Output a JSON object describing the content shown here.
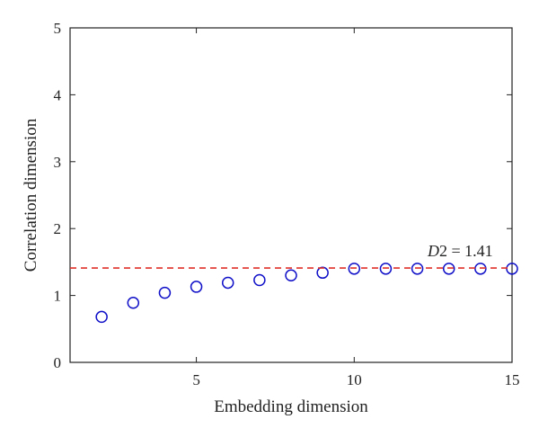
{
  "chart_data": {
    "type": "scatter",
    "xlabel": "Embedding dimension",
    "ylabel": "Correlation dimension",
    "xlim": [
      1,
      15
    ],
    "ylim": [
      0,
      5
    ],
    "xticks": [
      5,
      10,
      15
    ],
    "yticks": [
      0,
      1,
      2,
      3,
      4,
      5
    ],
    "x": [
      2,
      3,
      4,
      5,
      6,
      7,
      8,
      9,
      10,
      11,
      12,
      13,
      14,
      15
    ],
    "y": [
      0.68,
      0.89,
      1.04,
      1.13,
      1.19,
      1.23,
      1.3,
      1.34,
      1.4,
      1.4,
      1.4,
      1.4,
      1.4,
      1.4
    ],
    "reference_line": {
      "y": 1.41,
      "style": "dashed"
    },
    "annotation": {
      "symbol": "D",
      "rest": "2 = 1.41"
    },
    "marker_color": "#1010c8",
    "line_color": "#e0302a",
    "grid": false,
    "legend": "none"
  }
}
